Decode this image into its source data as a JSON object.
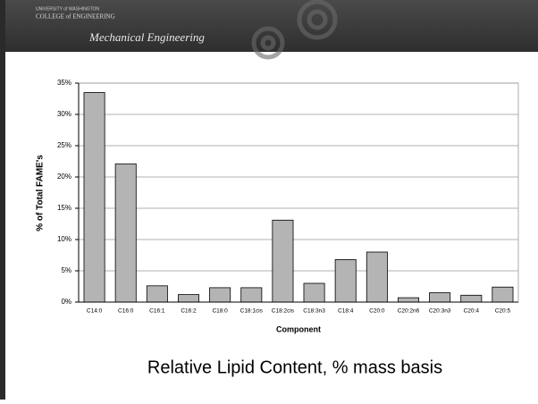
{
  "header": {
    "university": "UNIVERSITY of WASHINGTON",
    "college": "COLLEGE of ENGINEERING",
    "department": "Mechanical Engineering"
  },
  "chart_data": {
    "type": "bar",
    "title": "Relative Lipid Content, % mass basis",
    "x_label": "Component",
    "y_label": "% of Total FAME's",
    "categories": [
      "C14:0",
      "C16:0",
      "C16:1",
      "C16:2",
      "C18:0",
      "C18:1cis",
      "C18:2cis",
      "C18:3n3",
      "C18:4",
      "C20:0",
      "C20:2n6",
      "C20:3n3",
      "C20:4",
      "C20:5"
    ],
    "values": [
      33.5,
      22.1,
      2.6,
      1.2,
      2.3,
      2.3,
      13.1,
      3.0,
      6.8,
      8.0,
      0.7,
      1.5,
      1.1,
      2.4
    ],
    "color": "#b4b4b4",
    "ylim": [
      0,
      35
    ],
    "yticks": [
      {
        "value": 0,
        "label": "0%"
      },
      {
        "value": 5,
        "label": "5%"
      },
      {
        "value": 10,
        "label": "10%"
      },
      {
        "value": 15,
        "label": "15%"
      },
      {
        "value": 20,
        "label": "20%"
      },
      {
        "value": 25,
        "label": "25%"
      },
      {
        "value": 30,
        "label": "30%"
      },
      {
        "value": 35,
        "label": "35%"
      }
    ],
    "grid": true
  }
}
